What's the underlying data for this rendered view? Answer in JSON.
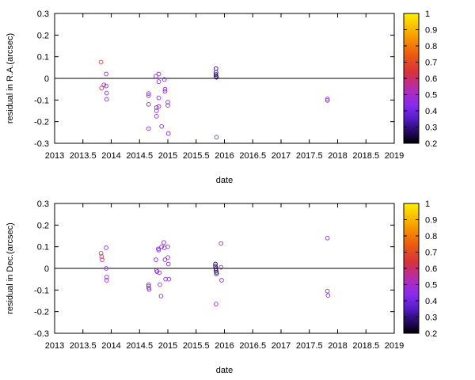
{
  "chart_data": [
    {
      "type": "scatter",
      "xlabel": "date",
      "ylabel": "residual in R.A.(arcsec)",
      "xlim": [
        2013,
        2019
      ],
      "ylim": [
        -0.3,
        0.3
      ],
      "x_ticks": [
        "2013",
        "2013.5",
        "2014",
        "2014.5",
        "2015",
        "2015.5",
        "2016",
        "2016.5",
        "2017",
        "2017.5",
        "2018",
        "2018.5",
        "2019"
      ],
      "y_ticks": [
        "-0.3",
        "-0.2",
        "-0.1",
        "0",
        "0.1",
        "0.2",
        "0.3"
      ],
      "colorbar": {
        "range": [
          0.2,
          1.0
        ],
        "ticks": [
          "0.2",
          "0.3",
          "0.4",
          "0.5",
          "0.6",
          "0.7",
          "0.8",
          "0.9",
          "1"
        ]
      },
      "zero_line": true,
      "points": [
        {
          "x": 2013.82,
          "y": 0.075,
          "c": 0.65
        },
        {
          "x": 2013.83,
          "y": -0.045,
          "c": 0.6
        },
        {
          "x": 2013.87,
          "y": -0.03,
          "c": 0.55
        },
        {
          "x": 2013.91,
          "y": 0.02,
          "c": 0.45
        },
        {
          "x": 2013.91,
          "y": -0.035,
          "c": 0.45
        },
        {
          "x": 2013.92,
          "y": -0.068,
          "c": 0.45
        },
        {
          "x": 2013.92,
          "y": -0.097,
          "c": 0.45
        },
        {
          "x": 2014.66,
          "y": -0.07,
          "c": 0.45
        },
        {
          "x": 2014.66,
          "y": -0.08,
          "c": 0.45
        },
        {
          "x": 2014.66,
          "y": -0.12,
          "c": 0.45
        },
        {
          "x": 2014.66,
          "y": -0.232,
          "c": 0.45
        },
        {
          "x": 2014.79,
          "y": 0.01,
          "c": 0.45
        },
        {
          "x": 2014.8,
          "y": -0.135,
          "c": 0.45
        },
        {
          "x": 2014.8,
          "y": -0.15,
          "c": 0.45
        },
        {
          "x": 2014.8,
          "y": -0.175,
          "c": 0.45
        },
        {
          "x": 2014.84,
          "y": 0.02,
          "c": 0.45
        },
        {
          "x": 2014.84,
          "y": -0.015,
          "c": 0.45
        },
        {
          "x": 2014.84,
          "y": -0.09,
          "c": 0.45
        },
        {
          "x": 2014.84,
          "y": -0.13,
          "c": 0.45
        },
        {
          "x": 2014.89,
          "y": -0.222,
          "c": 0.45
        },
        {
          "x": 2014.94,
          "y": -0.005,
          "c": 0.45
        },
        {
          "x": 2014.95,
          "y": -0.05,
          "c": 0.45
        },
        {
          "x": 2014.95,
          "y": -0.06,
          "c": 0.45
        },
        {
          "x": 2015.0,
          "y": -0.11,
          "c": 0.45
        },
        {
          "x": 2015.0,
          "y": -0.125,
          "c": 0.45
        },
        {
          "x": 2015.01,
          "y": -0.255,
          "c": 0.45
        },
        {
          "x": 2015.85,
          "y": 0.045,
          "c": 0.28
        },
        {
          "x": 2015.85,
          "y": 0.028,
          "c": 0.28
        },
        {
          "x": 2015.85,
          "y": 0.018,
          "c": 0.28
        },
        {
          "x": 2015.85,
          "y": 0.01,
          "c": 0.28
        },
        {
          "x": 2015.86,
          "y": 0.005,
          "c": 0.28
        },
        {
          "x": 2015.86,
          "y": -0.272,
          "c": 0.45
        },
        {
          "x": 2017.82,
          "y": -0.095,
          "c": 0.45
        },
        {
          "x": 2017.82,
          "y": -0.102,
          "c": 0.45
        }
      ]
    },
    {
      "type": "scatter",
      "xlabel": "date",
      "ylabel": "residual in Dec.(arcsec)",
      "xlim": [
        2013,
        2019
      ],
      "ylim": [
        -0.3,
        0.3
      ],
      "x_ticks": [
        "2013",
        "2013.5",
        "2014",
        "2014.5",
        "2015",
        "2015.5",
        "2016",
        "2016.5",
        "2017",
        "2017.5",
        "2018",
        "2018.5",
        "2019"
      ],
      "y_ticks": [
        "-0.3",
        "-0.2",
        "-0.1",
        "0",
        "0.1",
        "0.2",
        "0.3"
      ],
      "colorbar": {
        "range": [
          0.2,
          1.0
        ],
        "ticks": [
          "0.2",
          "0.3",
          "0.4",
          "0.5",
          "0.6",
          "0.7",
          "0.8",
          "0.9",
          "1"
        ]
      },
      "zero_line": true,
      "points": [
        {
          "x": 2013.82,
          "y": 0.07,
          "c": 0.65
        },
        {
          "x": 2013.83,
          "y": 0.055,
          "c": 0.62
        },
        {
          "x": 2013.84,
          "y": 0.04,
          "c": 0.6
        },
        {
          "x": 2013.91,
          "y": 0.095,
          "c": 0.45
        },
        {
          "x": 2013.91,
          "y": 0.0,
          "c": 0.45
        },
        {
          "x": 2013.92,
          "y": -0.04,
          "c": 0.45
        },
        {
          "x": 2013.92,
          "y": -0.055,
          "c": 0.45
        },
        {
          "x": 2014.66,
          "y": -0.075,
          "c": 0.45
        },
        {
          "x": 2014.66,
          "y": -0.082,
          "c": 0.45
        },
        {
          "x": 2014.66,
          "y": -0.09,
          "c": 0.45
        },
        {
          "x": 2014.67,
          "y": -0.098,
          "c": 0.45
        },
        {
          "x": 2014.79,
          "y": 0.04,
          "c": 0.45
        },
        {
          "x": 2014.8,
          "y": -0.01,
          "c": 0.45
        },
        {
          "x": 2014.81,
          "y": -0.015,
          "c": 0.45
        },
        {
          "x": 2014.83,
          "y": 0.09,
          "c": 0.45
        },
        {
          "x": 2014.84,
          "y": 0.085,
          "c": 0.45
        },
        {
          "x": 2014.85,
          "y": -0.02,
          "c": 0.45
        },
        {
          "x": 2014.86,
          "y": -0.075,
          "c": 0.45
        },
        {
          "x": 2014.88,
          "y": -0.128,
          "c": 0.45
        },
        {
          "x": 2014.89,
          "y": 0.1,
          "c": 0.45
        },
        {
          "x": 2014.93,
          "y": 0.12,
          "c": 0.45
        },
        {
          "x": 2014.94,
          "y": 0.095,
          "c": 0.45
        },
        {
          "x": 2014.95,
          "y": 0.04,
          "c": 0.45
        },
        {
          "x": 2014.96,
          "y": -0.05,
          "c": 0.45
        },
        {
          "x": 2015.0,
          "y": 0.1,
          "c": 0.45
        },
        {
          "x": 2015.0,
          "y": 0.05,
          "c": 0.45
        },
        {
          "x": 2015.01,
          "y": 0.02,
          "c": 0.45
        },
        {
          "x": 2015.02,
          "y": -0.05,
          "c": 0.45
        },
        {
          "x": 2015.84,
          "y": 0.02,
          "c": 0.28
        },
        {
          "x": 2015.84,
          "y": 0.01,
          "c": 0.28
        },
        {
          "x": 2015.85,
          "y": 0.0,
          "c": 0.28
        },
        {
          "x": 2015.85,
          "y": -0.01,
          "c": 0.28
        },
        {
          "x": 2015.86,
          "y": -0.018,
          "c": 0.28
        },
        {
          "x": 2015.86,
          "y": -0.025,
          "c": 0.28
        },
        {
          "x": 2015.85,
          "y": -0.165,
          "c": 0.45
        },
        {
          "x": 2015.94,
          "y": 0.115,
          "c": 0.45
        },
        {
          "x": 2015.94,
          "y": 0.005,
          "c": 0.45
        },
        {
          "x": 2015.95,
          "y": -0.055,
          "c": 0.45
        },
        {
          "x": 2017.82,
          "y": 0.14,
          "c": 0.45
        },
        {
          "x": 2017.82,
          "y": -0.105,
          "c": 0.45
        },
        {
          "x": 2017.83,
          "y": -0.125,
          "c": 0.45
        }
      ]
    }
  ]
}
